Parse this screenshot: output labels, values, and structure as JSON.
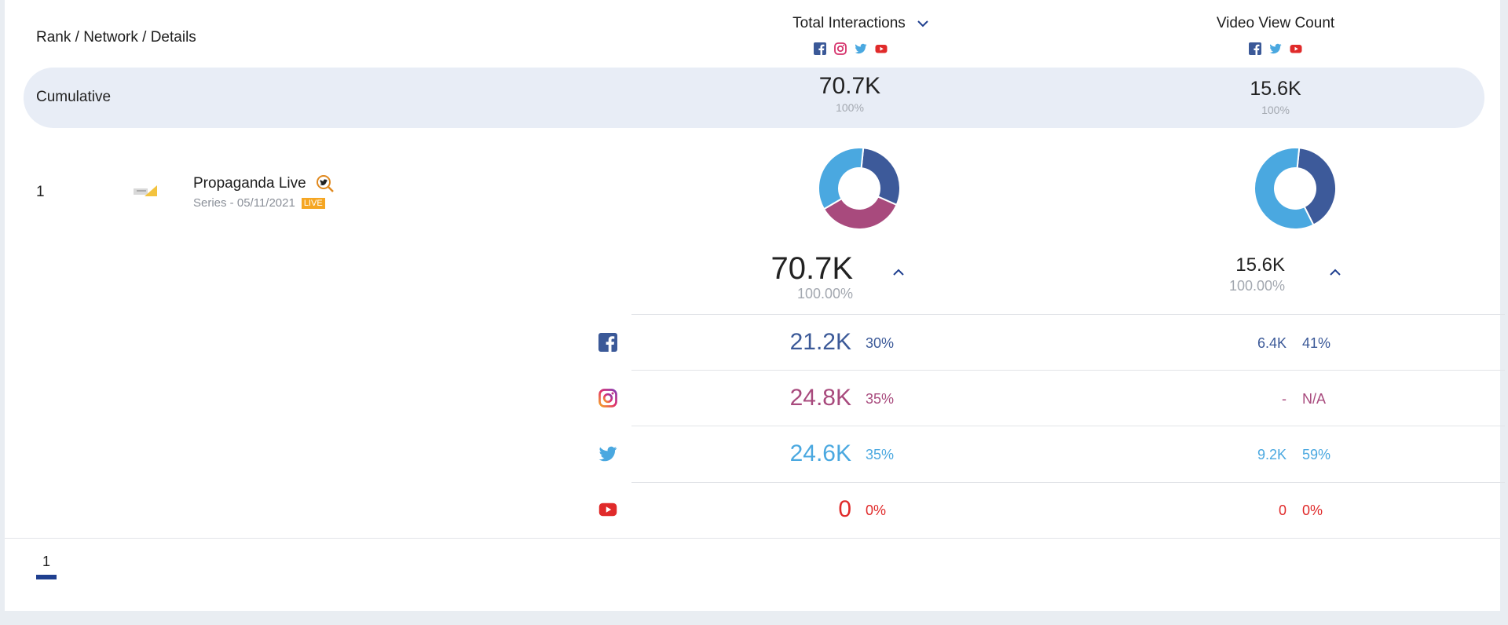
{
  "header": {
    "rank_label": "Rank / Network / Details",
    "col1_title": "Total Interactions",
    "col2_title": "Video View Count"
  },
  "cumulative": {
    "label": "Cumulative",
    "total_interactions": "70.7K",
    "total_interactions_pct": "100%",
    "video_views": "15.6K",
    "video_views_pct": "100%"
  },
  "row": {
    "rank": "1",
    "name": "Propaganda Live",
    "details": "Series - 05/11/2021",
    "badge": "LIVE",
    "total_interactions": "70.7K",
    "total_interactions_pct": "100.00%",
    "video_views": "15.6K",
    "video_views_pct": "100.00%",
    "networks": [
      {
        "name": "facebook",
        "interactions": "21.2K",
        "interactions_pct": "30%",
        "views": "6.4K",
        "views_pct": "41%"
      },
      {
        "name": "instagram",
        "interactions": "24.8K",
        "interactions_pct": "35%",
        "views": "-",
        "views_pct": "N/A"
      },
      {
        "name": "twitter",
        "interactions": "24.6K",
        "interactions_pct": "35%",
        "views": "9.2K",
        "views_pct": "59%"
      },
      {
        "name": "youtube",
        "interactions": "0",
        "interactions_pct": "0%",
        "views": "0",
        "views_pct": "0%"
      }
    ]
  },
  "donut_interactions": [
    {
      "network": "facebook",
      "fraction": 0.3,
      "color": "#3d5a9a"
    },
    {
      "network": "instagram",
      "fraction": 0.35,
      "color": "#a84a7d"
    },
    {
      "network": "twitter",
      "fraction": 0.35,
      "color": "#4aa8e0"
    }
  ],
  "donut_views": [
    {
      "network": "facebook",
      "fraction": 0.41,
      "color": "#3d5a9a"
    },
    {
      "network": "twitter",
      "fraction": 0.59,
      "color": "#4aa8e0"
    }
  ],
  "pagination": {
    "current_page": "1"
  },
  "colors": {
    "facebook": "#3b5998",
    "instagram": "#a84a7d",
    "twitter": "#4aa8e0",
    "youtube": "#e02a2a",
    "accent": "#1f3f8f"
  }
}
